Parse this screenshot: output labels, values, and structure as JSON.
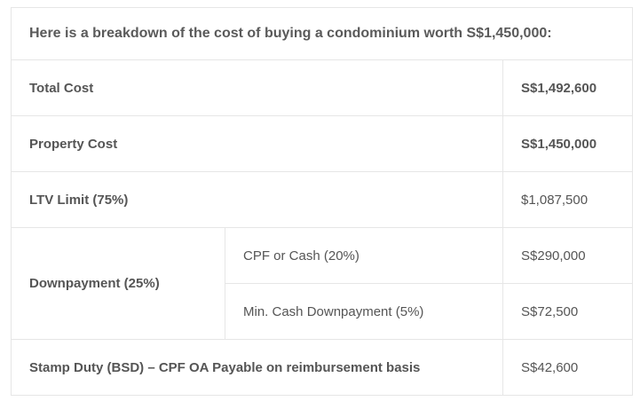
{
  "caption": "Here is a breakdown of the cost of buying a condominium worth S$1,450,000:",
  "rows": {
    "total_cost": {
      "label": "Total Cost",
      "value": "S$1,492,600"
    },
    "property_cost": {
      "label": "Property Cost",
      "value": "S$1,450,000"
    },
    "ltv_limit": {
      "label": "LTV Limit (75%)",
      "value": "$1,087,500"
    },
    "downpayment": {
      "label": "Downpayment (25%)",
      "cpf_or_cash": {
        "label": "CPF or Cash (20%)",
        "value": "S$290,000"
      },
      "min_cash": {
        "label": "Min. Cash Downpayment (5%)",
        "value": "S$72,500"
      }
    },
    "stamp_duty": {
      "label": "Stamp Duty (BSD) – CPF OA Payable on reimbursement basis",
      "value": "S$42,600"
    }
  }
}
